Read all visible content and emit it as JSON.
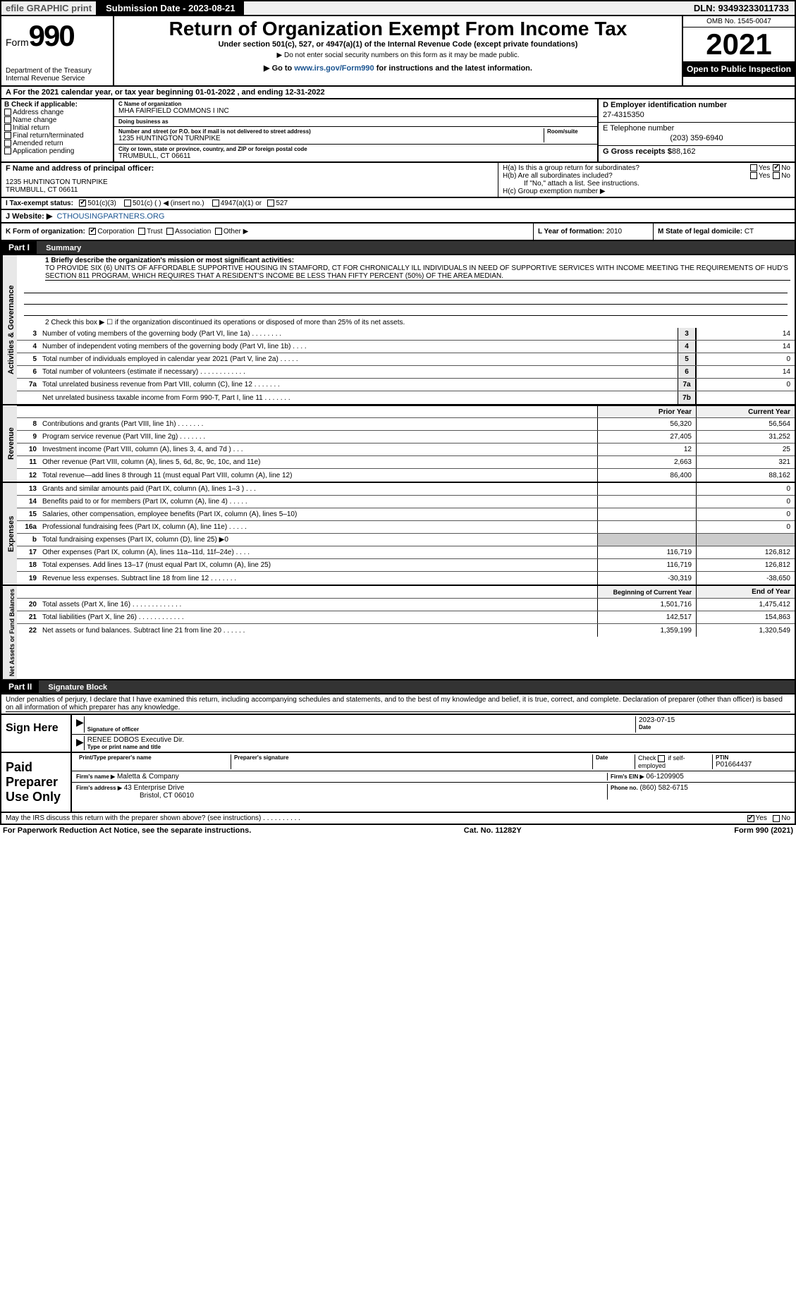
{
  "top_bar": {
    "efile": "efile GRAPHIC print",
    "submission": "Submission Date - 2023-08-21",
    "dln": "DLN: 93493233011733"
  },
  "header": {
    "form_word": "Form",
    "form_num": "990",
    "dept": "Department of the Treasury",
    "irs": "Internal Revenue Service",
    "title": "Return of Organization Exempt From Income Tax",
    "sub1": "Under section 501(c), 527, or 4947(a)(1) of the Internal Revenue Code (except private foundations)",
    "sub2": "▶ Do not enter social security numbers on this form as it may be made public.",
    "sub3_pre": "▶ Go to ",
    "sub3_link": "www.irs.gov/Form990",
    "sub3_post": " for instructions and the latest information.",
    "omb": "OMB No. 1545-0047",
    "year": "2021",
    "open": "Open to Public Inspection"
  },
  "line_A": "A For the 2021 calendar year, or tax year beginning 01-01-2022    , and ending 12-31-2022",
  "box_B": {
    "label": "B Check if applicable:",
    "items": [
      "Address change",
      "Name change",
      "Initial return",
      "Final return/terminated",
      "Amended return",
      "Application pending"
    ]
  },
  "box_C": {
    "name_label": "C Name of organization",
    "name": "MHA FAIRFIELD COMMONS I INC",
    "dba_label": "Doing business as",
    "dba": "",
    "addr_label": "Number and street (or P.O. box if mail is not delivered to street address)",
    "room_label": "Room/suite",
    "addr": "1235 HUNTINGTON TURNPIKE",
    "city_label": "City or town, state or province, country, and ZIP or foreign postal code",
    "city": "TRUMBULL, CT  06611"
  },
  "box_D": {
    "label": "D Employer identification number",
    "ein": "27-4315350"
  },
  "box_E": {
    "label": "E Telephone number",
    "phone": "(203) 359-6940"
  },
  "box_G": {
    "label": "G Gross receipts $",
    "val": "88,162"
  },
  "box_F": {
    "label": "F Name and address of principal officer:",
    "addr1": "1235 HUNTINGTON TURNPIKE",
    "addr2": "TRUMBULL, CT  06611"
  },
  "box_H": {
    "a_label": "H(a)  Is this a group return for subordinates?",
    "a_yes": "Yes",
    "a_no": "No",
    "b_label": "H(b)  Are all subordinates included?",
    "b_yes": "Yes",
    "b_no": "No",
    "b_note": "If \"No,\" attach a list. See instructions.",
    "c_label": "H(c)  Group exemption number ▶"
  },
  "box_I": {
    "label": "I   Tax-exempt status:",
    "opt1": "501(c)(3)",
    "opt2": "501(c) (  ) ◀ (insert no.)",
    "opt3": "4947(a)(1) or",
    "opt4": "527"
  },
  "box_J": {
    "label": "J   Website: ▶",
    "url": "CTHOUSINGPARTNERS.ORG"
  },
  "box_K": {
    "label": "K Form of organization:",
    "o1": "Corporation",
    "o2": "Trust",
    "o3": "Association",
    "o4": "Other ▶"
  },
  "box_L": {
    "label": "L Year of formation:",
    "val": "2010"
  },
  "box_M": {
    "label": "M State of legal domicile:",
    "val": "CT"
  },
  "part1": {
    "tag": "Part I",
    "title": "Summary"
  },
  "summary": {
    "q1_label": "1  Briefly describe the organization's mission or most significant activities:",
    "q1_text": "TO PROVIDE SIX (6) UNITS OF AFFORDABLE SUPPORTIVE HOUSING IN STAMFORD, CT FOR CHRONICALLY ILL INDIVIDUALS IN NEED OF SUPPORTIVE SERVICES WITH INCOME MEETING THE REQUIREMENTS OF HUD'S SECTION 811 PROGRAM, WHICH REQUIRES THAT A RESIDENT'S INCOME BE LESS THAN FIFTY PERCENT (50%) OF THE AREA MEDIAN.",
    "q2": "2   Check this box ▶ ☐  if the organization discontinued its operations or disposed of more than 25% of its net assets.",
    "lines_ag": [
      {
        "n": "3",
        "t": "Number of voting members of the governing body (Part VI, line 1a)   .   .   .   .   .   .   .   .",
        "box": "3",
        "v": "14"
      },
      {
        "n": "4",
        "t": "Number of independent voting members of the governing body (Part VI, line 1b)   .   .   .   .",
        "box": "4",
        "v": "14"
      },
      {
        "n": "5",
        "t": "Total number of individuals employed in calendar year 2021 (Part V, line 2a)   .   .   .   .   .",
        "box": "5",
        "v": "0"
      },
      {
        "n": "6",
        "t": "Total number of volunteers (estimate if necessary)   .   .   .   .   .   .   .   .   .   .   .   .",
        "box": "6",
        "v": "14"
      },
      {
        "n": "7a",
        "t": "Total unrelated business revenue from Part VIII, column (C), line 12   .   .   .   .   .   .   .",
        "box": "7a",
        "v": "0"
      },
      {
        "n": "",
        "t": "Net unrelated business taxable income from Form 990-T, Part I, line 11   .   .   .   .   .   .   .",
        "box": "7b",
        "v": ""
      }
    ],
    "colhdr_prior": "Prior Year",
    "colhdr_curr": "Current Year",
    "rev": [
      {
        "n": "8",
        "t": "Contributions and grants (Part VIII, line 1h)   .   .   .   .   .   .   .",
        "p": "56,320",
        "c": "56,564"
      },
      {
        "n": "9",
        "t": "Program service revenue (Part VIII, line 2g)   .   .   .   .   .   .   .",
        "p": "27,405",
        "c": "31,252"
      },
      {
        "n": "10",
        "t": "Investment income (Part VIII, column (A), lines 3, 4, and 7d )   .   .   .",
        "p": "12",
        "c": "25"
      },
      {
        "n": "11",
        "t": "Other revenue (Part VIII, column (A), lines 5, 6d, 8c, 9c, 10c, and 11e)",
        "p": "2,663",
        "c": "321"
      },
      {
        "n": "12",
        "t": "Total revenue—add lines 8 through 11 (must equal Part VIII, column (A), line 12)",
        "p": "86,400",
        "c": "88,162"
      }
    ],
    "exp": [
      {
        "n": "13",
        "t": "Grants and similar amounts paid (Part IX, column (A), lines 1–3 )   .   .   .",
        "p": "",
        "c": "0"
      },
      {
        "n": "14",
        "t": "Benefits paid to or for members (Part IX, column (A), line 4)   .   .   .   .   .",
        "p": "",
        "c": "0"
      },
      {
        "n": "15",
        "t": "Salaries, other compensation, employee benefits (Part IX, column (A), lines 5–10)",
        "p": "",
        "c": "0"
      },
      {
        "n": "16a",
        "t": "Professional fundraising fees (Part IX, column (A), line 11e)   .   .   .   .   .",
        "p": "",
        "c": "0"
      },
      {
        "n": "b",
        "t": "Total fundraising expenses (Part IX, column (D), line 25) ▶0",
        "p": "shaded",
        "c": "shaded"
      },
      {
        "n": "17",
        "t": "Other expenses (Part IX, column (A), lines 11a–11d, 11f–24e)   .   .   .   .",
        "p": "116,719",
        "c": "126,812"
      },
      {
        "n": "18",
        "t": "Total expenses. Add lines 13–17 (must equal Part IX, column (A), line 25)",
        "p": "116,719",
        "c": "126,812"
      },
      {
        "n": "19",
        "t": "Revenue less expenses. Subtract line 18 from line 12   .   .   .   .   .   .   .",
        "p": "-30,319",
        "c": "-38,650"
      }
    ],
    "colhdr_beg": "Beginning of Current Year",
    "colhdr_end": "End of Year",
    "na": [
      {
        "n": "20",
        "t": "Total assets (Part X, line 16)   .   .   .   .   .   .   .   .   .   .   .   .   .",
        "p": "1,501,716",
        "c": "1,475,412"
      },
      {
        "n": "21",
        "t": "Total liabilities (Part X, line 26)   .   .   .   .   .   .   .   .   .   .   .   .",
        "p": "142,517",
        "c": "154,863"
      },
      {
        "n": "22",
        "t": "Net assets or fund balances. Subtract line 21 from line 20   .   .   .   .   .   .",
        "p": "1,359,199",
        "c": "1,320,549"
      }
    ],
    "vlabels": {
      "ag": "Activities & Governance",
      "rev": "Revenue",
      "exp": "Expenses",
      "na": "Net Assets or Fund Balances"
    }
  },
  "part2": {
    "tag": "Part II",
    "title": "Signature Block",
    "perjury": "Under penalties of perjury, I declare that I have examined this return, including accompanying schedules and statements, and to the best of my knowledge and belief, it is true, correct, and complete. Declaration of preparer (other than officer) is based on all information of which preparer has any knowledge."
  },
  "sign": {
    "here": "Sign Here",
    "sig_label": "Signature of officer",
    "date_label": "Date",
    "date": "2023-07-15",
    "name": "RENEE DOBOS  Executive Dir.",
    "name_label": "Type or print name and title"
  },
  "paid": {
    "here": "Paid Preparer Use Only",
    "c1": "Print/Type preparer's name",
    "c2": "Preparer's signature",
    "c3": "Date",
    "c4_pre": "Check",
    "c4_post": "if self-employed",
    "c5": "PTIN",
    "ptin": "P01664437",
    "firm_label": "Firm's name   ▶",
    "firm": "Maletta & Company",
    "ein_label": "Firm's EIN ▶",
    "ein": "06-1209905",
    "addr_label": "Firm's address ▶",
    "addr1": "43 Enterprise Drive",
    "addr2": "Bristol, CT  06010",
    "phone_label": "Phone no.",
    "phone": "(860) 582-6715"
  },
  "may_discuss": "May the IRS discuss this return with the preparer shown above? (see instructions)   .   .   .   .   .   .   .   .   .   .",
  "yes": "Yes",
  "no": "No",
  "footer": {
    "pra": "For Paperwork Reduction Act Notice, see the separate instructions.",
    "cat": "Cat. No. 11282Y",
    "form": "Form 990 (2021)"
  },
  "colors": {
    "hdr_bg": "#000",
    "accent": "#1a5490",
    "shade": "#e8e8e8"
  }
}
